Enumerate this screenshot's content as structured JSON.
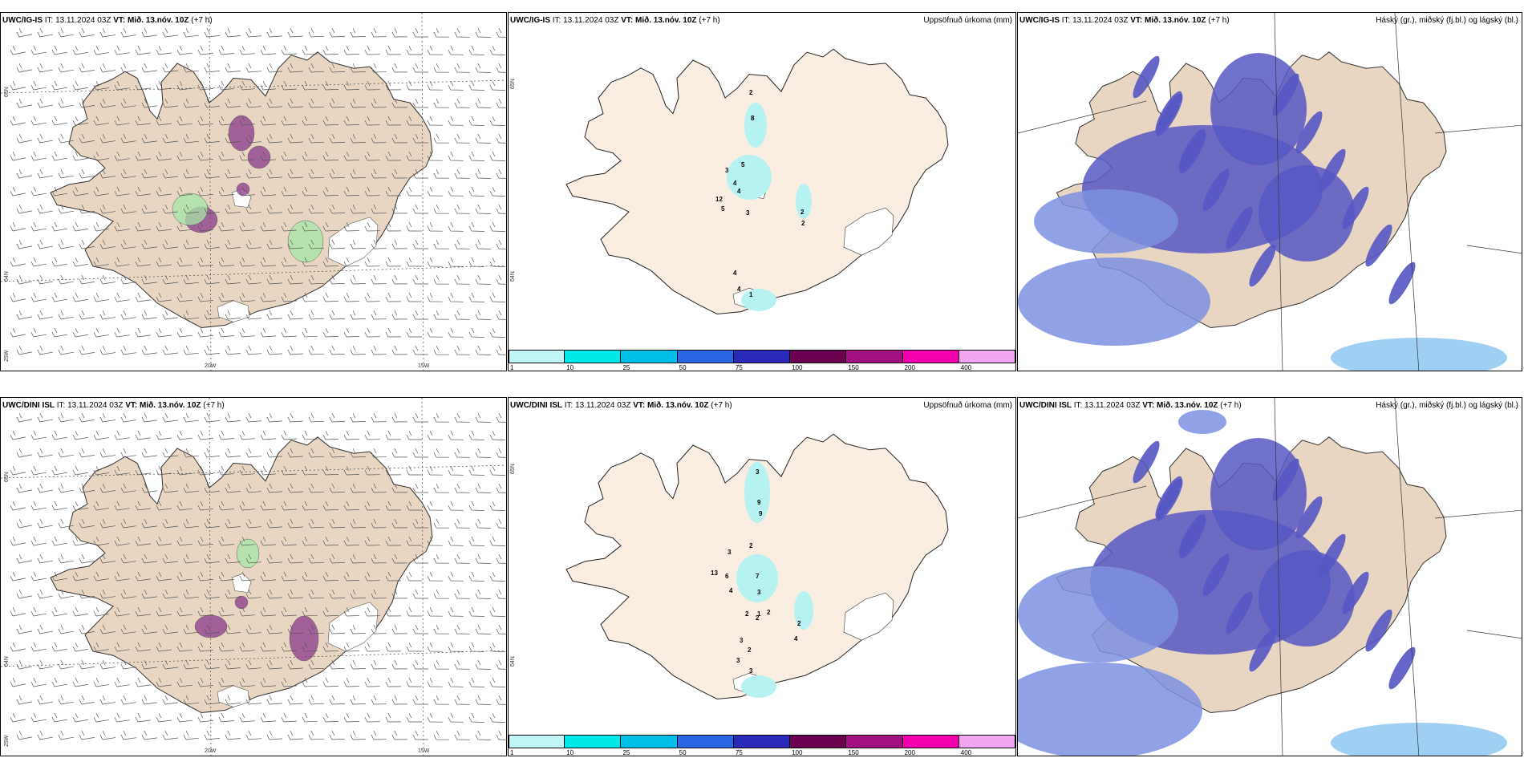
{
  "colors": {
    "land": "#e8d6c2",
    "land_light": "#faeee2",
    "ice": "#ffffff",
    "precip": "#b6f2f2",
    "cloud_high": "#5757c4",
    "cloud_low": "#7c90e0",
    "cloud_edge": "#8ec8f2",
    "purple": "#8a3b8a",
    "green": "#a6e6a6"
  },
  "rows": [
    {
      "model": "UWC/IG-IS",
      "it_label": "IT:",
      "it_value": "13.11.2024 03Z",
      "vt_label": "VT:",
      "vt_value": "Mið. 13.nóv. 10Z",
      "lead": "(+7 h)",
      "wind": {
        "lon_labels": [
          "20W",
          "15W"
        ],
        "lat_labels": [
          "65N",
          "64N",
          "25W"
        ]
      },
      "precip": {
        "title": "Uppsöfnuð úrkoma (mm)",
        "lat_labels": [
          "65N",
          "64N"
        ],
        "numbers": [
          "2",
          "8",
          "5",
          "3",
          "12",
          "4",
          "4",
          "3",
          "5",
          "2",
          "2",
          "4",
          "4",
          "1"
        ]
      },
      "cloud": {
        "title": "Háský (gr.), miðský (fj.bl.) og lágský (bl.)"
      }
    },
    {
      "model": "UWC/DINI ISL",
      "it_label": "IT:",
      "it_value": "13.11.2024 03Z",
      "vt_label": "VT:",
      "vt_value": "Mið. 13.nóv. 10Z",
      "lead": "(+7 h)",
      "wind": {
        "lon_labels": [
          "20W",
          "15W"
        ],
        "lat_labels": [
          "65N",
          "64N",
          "25W"
        ]
      },
      "precip": {
        "title": "Uppsöfnuð úrkoma (mm)",
        "lat_labels": [
          "65N",
          "64N"
        ],
        "numbers": [
          "3",
          "9",
          "9",
          "2",
          "3",
          "13",
          "6",
          "4",
          "7",
          "3",
          "2",
          "2",
          "4",
          "2",
          "1",
          "2",
          "3",
          "2",
          "3",
          "3"
        ]
      },
      "cloud": {
        "title": "Háský (gr.), miðský (fj.bl.) og lágský (bl.)"
      }
    }
  ],
  "colorbar": {
    "ticks": [
      "1",
      "10",
      "25",
      "50",
      "75",
      "100",
      "150",
      "200",
      "400"
    ],
    "colors": [
      "#c2f5f5",
      "#00e8e8",
      "#00c0e8",
      "#2a66e6",
      "#2a2ab8",
      "#6b0050",
      "#a4107f",
      "#f200b0",
      "#f0a6f0"
    ]
  }
}
